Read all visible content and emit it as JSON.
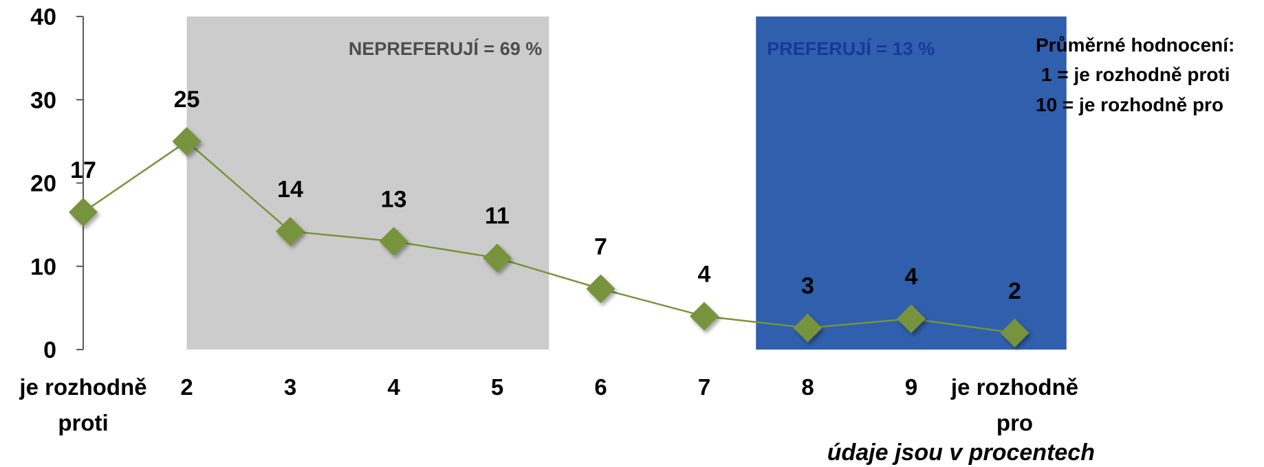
{
  "chart_data": {
    "type": "line",
    "categories": [
      "je rozhodně proti",
      "2",
      "3",
      "4",
      "5",
      "6",
      "7",
      "8",
      "9",
      "je rozhodně pro"
    ],
    "values": [
      17,
      25,
      14,
      13,
      11,
      7,
      4,
      3,
      4,
      2
    ],
    "plotted_values": [
      16.5,
      25,
      14.2,
      13,
      11,
      7.3,
      4,
      2.6,
      3.7,
      2
    ],
    "ylim": [
      0,
      40
    ],
    "yticks": [
      0,
      10,
      20,
      30,
      40
    ],
    "grid": false,
    "line_color": "#77933c",
    "marker_color": "#77933c",
    "regions": [
      {
        "label": "NEPREFERUJÍ = 69 %",
        "from_category": 1,
        "to_category": 4.5,
        "fill": "#cccccc",
        "text_color": "#4d4d4d"
      },
      {
        "label": "PREFERUJÍ = 13 %",
        "from_category": 6.5,
        "to_category": 9.5,
        "fill": "#2f5fad",
        "text_color": "#17399a"
      }
    ],
    "legend_note": [
      "Průměrné hodnocení:",
      "1 = je rozhodně proti",
      "10 = je rozhodně pro"
    ],
    "units_note": "údaje jsou v procentech"
  }
}
